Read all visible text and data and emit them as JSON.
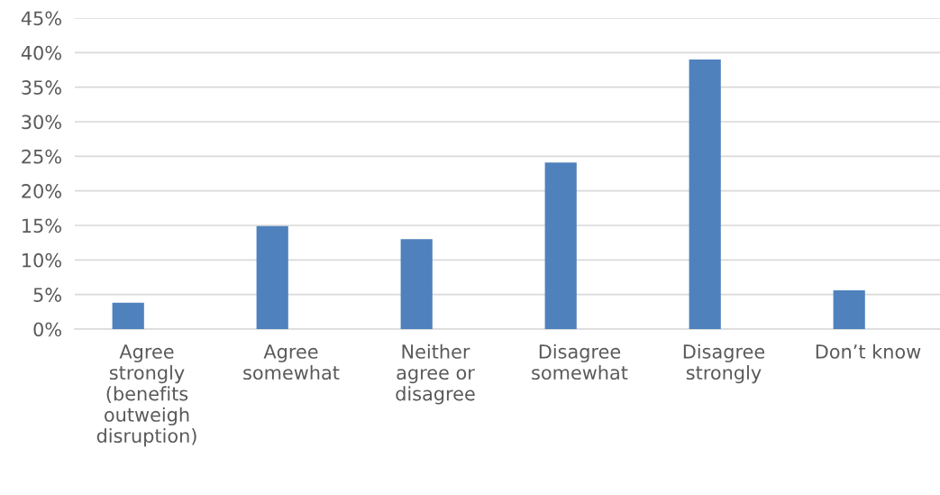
{
  "chart_data": {
    "type": "bar",
    "categories": [
      "Agree strongly (benefits outweigh disruption)",
      "Agree somewhat",
      "Neither agree or disagree",
      "Disagree somewhat",
      "Disagree strongly",
      "Don’t know"
    ],
    "values": [
      3.8,
      14.9,
      13.0,
      24.1,
      39.0,
      5.6
    ],
    "color": "#4f81bd",
    "ylim": [
      0,
      45
    ],
    "yticks": [
      {
        "value": 0,
        "label": "0%"
      },
      {
        "value": 5,
        "label": "5%"
      },
      {
        "value": 10,
        "label": "10%"
      },
      {
        "value": 15,
        "label": "15%"
      },
      {
        "value": 20,
        "label": "20%"
      },
      {
        "value": 25,
        "label": "25%"
      },
      {
        "value": 30,
        "label": "30%"
      },
      {
        "value": 35,
        "label": "35%"
      },
      {
        "value": 40,
        "label": "40%"
      },
      {
        "value": 45,
        "label": "45%"
      }
    ],
    "grid": "y"
  }
}
